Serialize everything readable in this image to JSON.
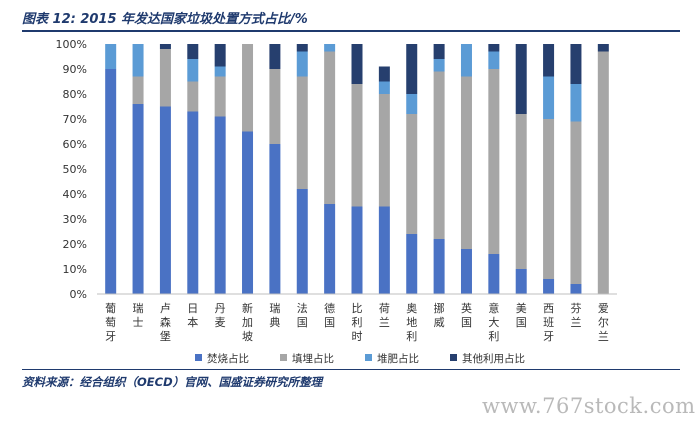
{
  "header": {
    "title": "图表 12: 2015 年发达国家垃圾处置方式占比/%"
  },
  "footer": {
    "source": "资料来源：经合组织（OECD）官网、国盛证券研究所整理",
    "watermark": "www.767stock.com"
  },
  "colors": {
    "incineration": "#4a72c4",
    "landfill": "#a6a6a6",
    "compost": "#5b9bd5",
    "other": "#263f6e",
    "text": "#333333",
    "axis": "#bfbfbf"
  },
  "chart_data": {
    "type": "bar",
    "stacked": true,
    "title": "2015 年发达国家垃圾处置方式占比/%",
    "xlabel": "",
    "ylabel": "",
    "ylim": [
      0,
      100
    ],
    "yticks": [
      "0%",
      "10%",
      "20%",
      "30%",
      "40%",
      "50%",
      "60%",
      "70%",
      "80%",
      "90%",
      "100%"
    ],
    "grid": false,
    "legend_position": "bottom",
    "categories": [
      "葡萄牙",
      "瑞士",
      "卢森堡",
      "日本",
      "丹麦",
      "新加坡",
      "瑞典",
      "法国",
      "德国",
      "比利时",
      "荷兰",
      "奥地利",
      "挪威",
      "英国",
      "意大利",
      "美国",
      "西班牙",
      "芬兰",
      "爱尔兰"
    ],
    "series": [
      {
        "name": "焚烧占比",
        "color_key": "incineration",
        "values": [
          90,
          76,
          75,
          73,
          71,
          65,
          60,
          42,
          36,
          35,
          35,
          24,
          22,
          18,
          16,
          10,
          6,
          4,
          0
        ]
      },
      {
        "name": "填埋占比",
        "color_key": "landfill",
        "values": [
          0,
          11,
          23,
          12,
          16,
          35,
          30,
          45,
          61,
          49,
          45,
          48,
          67,
          69,
          74,
          62,
          64,
          65,
          97
        ]
      },
      {
        "name": "堆肥占比",
        "color_key": "compost",
        "values": [
          10,
          13,
          0,
          9,
          4,
          0,
          0,
          10,
          3,
          0,
          5,
          8,
          5,
          13,
          7,
          0,
          17,
          15,
          0
        ]
      },
      {
        "name": "其他利用占比",
        "color_key": "other",
        "values": [
          0,
          0,
          2,
          6,
          9,
          0,
          10,
          3,
          0,
          16,
          6,
          20,
          6,
          0,
          3,
          28,
          13,
          16,
          3
        ]
      }
    ]
  }
}
